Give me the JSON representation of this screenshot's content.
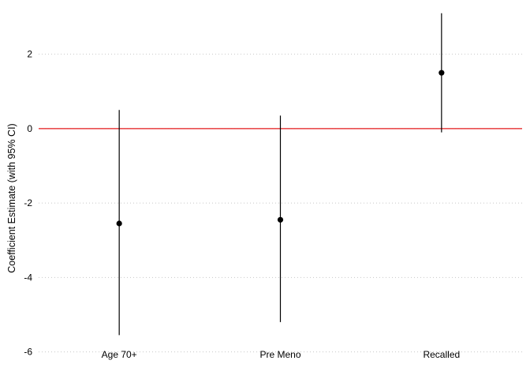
{
  "chart_data": {
    "type": "scatter",
    "subtype": "coefficient-plot-with-error-bars",
    "title": "",
    "xlabel": "",
    "ylabel": "Coefficient Estimate (with 95% CI)",
    "categories": [
      "Age 70+",
      "Pre Meno",
      "Recalled"
    ],
    "estimates": [
      -2.55,
      -2.45,
      1.5
    ],
    "ci_lower": [
      -5.55,
      -5.2,
      -0.1
    ],
    "ci_upper": [
      0.5,
      0.35,
      3.1
    ],
    "ylim": [
      -6.2,
      3.35
    ],
    "yticks": [
      -6,
      -4,
      -2,
      0,
      2
    ],
    "reference_line": {
      "y": 0,
      "color": "#e41a1c"
    },
    "grid": {
      "horizontal": true,
      "style": "dotted",
      "color": "#c8c8c8"
    },
    "colors": {
      "points": "#000000",
      "errorbars": "#000000"
    }
  }
}
